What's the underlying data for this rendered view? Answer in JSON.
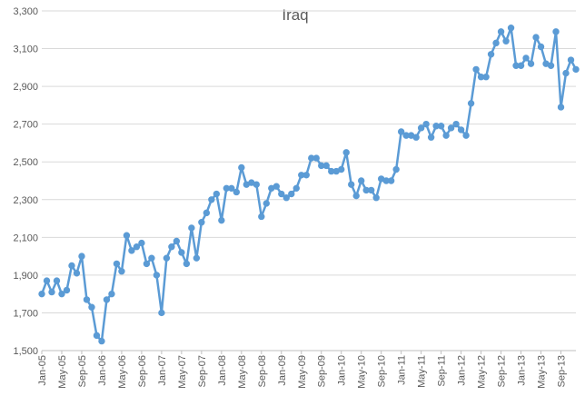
{
  "chart_data": {
    "type": "line",
    "title": "Iraq",
    "xlabel": "",
    "ylabel": "",
    "ylim": [
      1500,
      3300
    ],
    "y_ticks": [
      1500,
      1700,
      1900,
      2100,
      2300,
      2500,
      2700,
      2900,
      3100,
      3300
    ],
    "y_tick_labels": [
      "1,500",
      "1,700",
      "1,900",
      "2,100",
      "2,300",
      "2,500",
      "2,700",
      "2,900",
      "3,100",
      "3,300"
    ],
    "x_tick_labels": [
      "Jan-05",
      "May-05",
      "Sep-05",
      "Jan-06",
      "May-06",
      "Sep-06",
      "Jan-07",
      "May-07",
      "Sep-07",
      "Jan-08",
      "May-08",
      "Sep-08",
      "Jan-09",
      "May-09",
      "Sep-09",
      "Jan-10",
      "May-10",
      "Sep-10",
      "Jan-11",
      "May-11",
      "Sep-11",
      "Jan-12",
      "May-12",
      "Sep-12",
      "Jan-13",
      "May-13",
      "Sep-13"
    ],
    "grid": true,
    "color": "#5b9bd5",
    "series": [
      {
        "x_start": "Jan-05",
        "values": [
          1800,
          1870,
          1810,
          1870,
          1800,
          1820,
          1950,
          1910,
          2000,
          1770,
          1730,
          1580,
          1550,
          1770,
          1800,
          1960,
          1920,
          2110,
          2030,
          2050,
          2070,
          1960,
          1990,
          1900,
          1700,
          1990,
          2050,
          2080,
          2020,
          1960,
          2150,
          1990,
          2180,
          2230,
          2300,
          2330,
          2190,
          2360,
          2360,
          2340,
          2470,
          2380,
          2390,
          2380,
          2210,
          2280,
          2360,
          2370,
          2330,
          2310,
          2330,
          2360,
          2430,
          2430,
          2520,
          2520,
          2480,
          2480,
          2450,
          2450,
          2460,
          2550,
          2380,
          2320,
          2400,
          2350,
          2350,
          2310,
          2410,
          2400,
          2400,
          2460,
          2660,
          2640,
          2640,
          2630,
          2680,
          2700,
          2630,
          2690,
          2690,
          2640,
          2680,
          2700,
          2670,
          2640,
          2810,
          2990,
          2950,
          2950,
          3070,
          3130,
          3190,
          3140,
          3210,
          3010,
          3010,
          3050,
          3020,
          3160,
          3110,
          3020,
          3010,
          3190,
          2790,
          2970,
          3040,
          2990
        ]
      }
    ]
  }
}
